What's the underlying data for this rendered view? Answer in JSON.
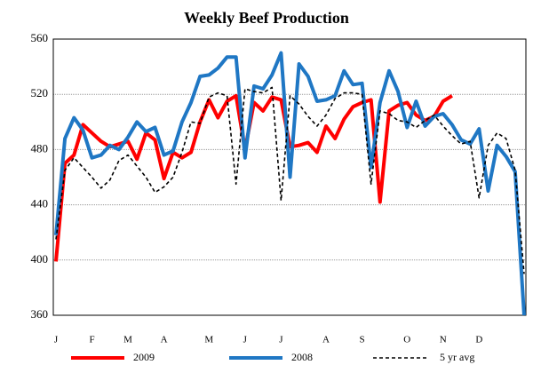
{
  "chart_data": {
    "type": "line",
    "title": "Weekly Beef Production",
    "categories": [
      "J",
      null,
      null,
      null,
      "F",
      null,
      null,
      null,
      "M",
      null,
      null,
      null,
      "A",
      null,
      null,
      null,
      null,
      "M",
      null,
      null,
      null,
      "J",
      null,
      null,
      null,
      "J",
      null,
      null,
      null,
      null,
      "A",
      null,
      null,
      null,
      "S",
      null,
      null,
      null,
      null,
      "O",
      null,
      null,
      null,
      "N",
      null,
      null,
      null,
      "D",
      null,
      null,
      null,
      null,
      null
    ],
    "series": [
      {
        "name": "2009",
        "color": "#ff0000",
        "dash": false,
        "values": [
          399,
          470,
          476,
          498,
          492,
          486,
          482,
          484,
          486,
          473,
          492,
          487,
          459,
          478,
          474,
          478,
          500,
          516,
          503,
          515,
          519,
          480,
          514,
          508,
          518,
          516,
          482,
          483,
          485,
          478,
          497,
          488,
          502,
          511,
          514,
          516,
          442,
          508,
          512,
          514,
          505,
          501,
          504,
          515,
          519,
          null,
          null,
          null,
          null,
          null,
          null,
          null,
          null
        ]
      },
      {
        "name": "2008",
        "color": "#1f77c4",
        "dash": false,
        "values": [
          418,
          488,
          503,
          494,
          474,
          476,
          483,
          480,
          489,
          500,
          493,
          496,
          476,
          479,
          500,
          514,
          533,
          534,
          539,
          547,
          547,
          474,
          526,
          524,
          534,
          550,
          460,
          542,
          533,
          515,
          516,
          519,
          537,
          527,
          528,
          467,
          514,
          537,
          522,
          496,
          515,
          497,
          504,
          506,
          498,
          487,
          484,
          495,
          450,
          483,
          475,
          464,
          360
        ]
      },
      {
        "name": "5 yr avg",
        "color": "#000000",
        "dash": true,
        "values": [
          415,
          465,
          474,
          467,
          460,
          452,
          458,
          472,
          476,
          468,
          460,
          449,
          453,
          460,
          478,
          500,
          499,
          518,
          521,
          519,
          455,
          524,
          522,
          521,
          525,
          443,
          519,
          513,
          504,
          497,
          505,
          517,
          521,
          521,
          520,
          455,
          508,
          506,
          501,
          500,
          496,
          501,
          505,
          497,
          490,
          484,
          486,
          445,
          483,
          492,
          488,
          465,
          390
        ]
      }
    ],
    "ylim": [
      360,
      560
    ],
    "yticks": [
      360,
      400,
      440,
      480,
      520,
      560
    ],
    "grid": true
  }
}
